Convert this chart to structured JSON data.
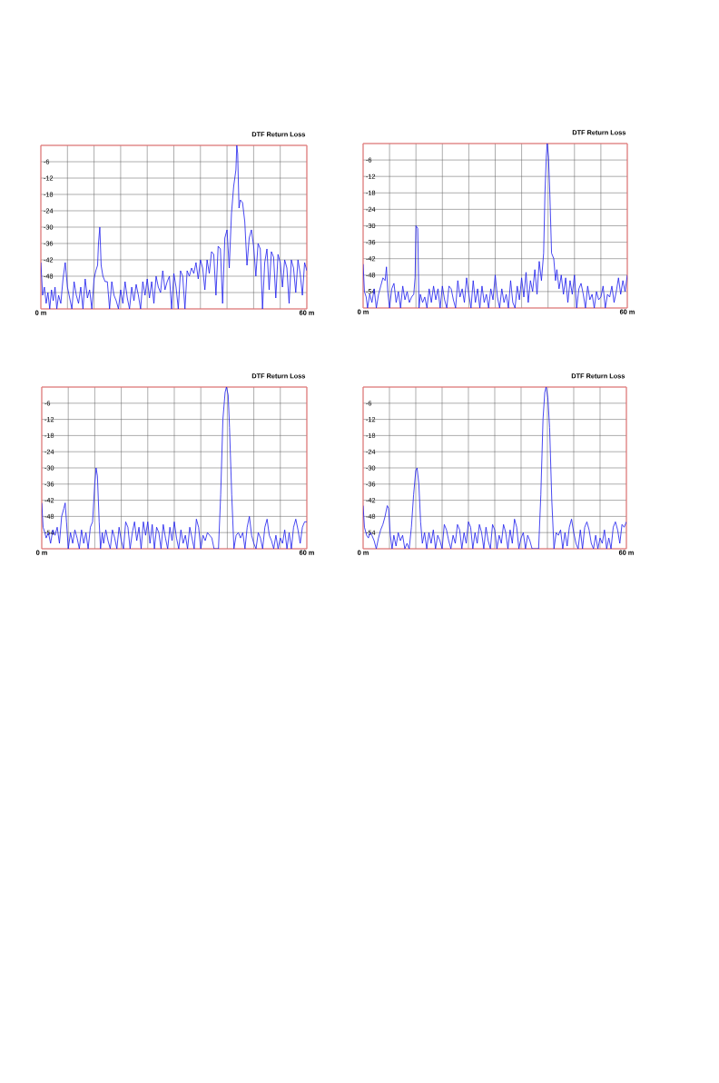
{
  "chart_data": [
    {
      "type": "line",
      "title": "DTF Return Loss",
      "xlim": [
        0,
        60
      ],
      "ylim": [
        -60,
        0
      ],
      "grid": true,
      "xticks": [
        {
          "value": 0,
          "label": "0 m"
        },
        {
          "value": 6,
          "label": null
        },
        {
          "value": 12,
          "label": null
        },
        {
          "value": 18,
          "label": null
        },
        {
          "value": 24,
          "label": null
        },
        {
          "value": 30,
          "label": null
        },
        {
          "value": 36,
          "label": null
        },
        {
          "value": 42,
          "label": null
        },
        {
          "value": 48,
          "label": null
        },
        {
          "value": 54,
          "label": null
        },
        {
          "value": 60,
          "label": "60 m"
        }
      ],
      "yticks": [
        {
          "value": -60,
          "label": null
        },
        {
          "value": -54,
          "label": null
        },
        -48,
        -42,
        -36,
        -30,
        -24,
        -18,
        -12,
        -6,
        {
          "value": 0,
          "label": null
        }
      ],
      "series": [
        {
          "color": "#1a1aee",
          "x": [
            0,
            0.4,
            0.8,
            1.2,
            1.6,
            2,
            2.4,
            2.8,
            3.2,
            3.6,
            4,
            4.5,
            5,
            5.5,
            6,
            6.5,
            7,
            7.5,
            8,
            8.5,
            9,
            9.5,
            10,
            10.5,
            11,
            11.5,
            12,
            12.4,
            12.8,
            13,
            13.3,
            13.6,
            14,
            14.5,
            15,
            15.5,
            16,
            16.5,
            17,
            17.5,
            18,
            18.5,
            19,
            19.5,
            20,
            20.5,
            21,
            21.5,
            22,
            22.5,
            23,
            23.5,
            24,
            24.5,
            25,
            25.5,
            26,
            26.5,
            27,
            27.5,
            28,
            28.5,
            29,
            29.5,
            30,
            30.5,
            31,
            31.5,
            32,
            32.5,
            33,
            33.5,
            34,
            34.5,
            35,
            35.5,
            36,
            36.5,
            37,
            37.5,
            38,
            38.5,
            39,
            39.5,
            40,
            40.5,
            41,
            41.5,
            42,
            42.5,
            43,
            43.5,
            44,
            44.2,
            44.4,
            44.7,
            45,
            45.5,
            46,
            46.5,
            47,
            47.5,
            48,
            48.5,
            49,
            49.5,
            50,
            50.5,
            51,
            51.5,
            52,
            52.5,
            53,
            53.5,
            54,
            54.5,
            55,
            55.5,
            56,
            56.5,
            57,
            57.5,
            58,
            58.5,
            59,
            59.5,
            60
          ],
          "values": [
            -43,
            -55,
            -52,
            -58,
            -54,
            -60,
            -53,
            -57,
            -52,
            -60,
            -55,
            -58,
            -49,
            -43,
            -52,
            -56,
            -60,
            -50,
            -55,
            -58,
            -52,
            -60,
            -49,
            -56,
            -53,
            -60,
            -49,
            -46,
            -44,
            -36,
            -30,
            -44,
            -48,
            -50,
            -50,
            -60,
            -50,
            -55,
            -57,
            -60,
            -53,
            -58,
            -50,
            -56,
            -60,
            -52,
            -57,
            -51,
            -55,
            -60,
            -50,
            -55,
            -49,
            -56,
            -50,
            -58,
            -48,
            -52,
            -54,
            -46,
            -53,
            -50,
            -48,
            -60,
            -47,
            -52,
            -60,
            -46,
            -48,
            -60,
            -46,
            -48,
            -45,
            -47,
            -43,
            -49,
            -42,
            -45,
            -53,
            -42,
            -47,
            -39,
            -40,
            -55,
            -37,
            -38,
            -58,
            -34,
            -31,
            -45,
            -25,
            -15,
            -9,
            0,
            -3,
            -23,
            -20,
            -21,
            -28,
            -44,
            -34,
            -31,
            -37,
            -48,
            -36,
            -38,
            -60,
            -43,
            -38,
            -53,
            -39,
            -41,
            -56,
            -40,
            -43,
            -52,
            -42,
            -45,
            -58,
            -42,
            -45,
            -54,
            -42,
            -47,
            -55,
            -43,
            -46
          ]
        }
      ]
    },
    {
      "type": "line",
      "title": "DTF Return Loss",
      "xlim": [
        0,
        60
      ],
      "ylim": [
        -60,
        0
      ],
      "grid": true,
      "xticks": [
        {
          "value": 0,
          "label": "0 m"
        },
        {
          "value": 6,
          "label": null
        },
        {
          "value": 12,
          "label": null
        },
        {
          "value": 18,
          "label": null
        },
        {
          "value": 24,
          "label": null
        },
        {
          "value": 30,
          "label": null
        },
        {
          "value": 36,
          "label": null
        },
        {
          "value": 42,
          "label": null
        },
        {
          "value": 48,
          "label": null
        },
        {
          "value": 54,
          "label": null
        },
        {
          "value": 60,
          "label": "60 m"
        }
      ],
      "yticks": [
        {
          "value": -60,
          "label": null
        },
        -54,
        -48,
        -42,
        -36,
        -30,
        -24,
        -18,
        -12,
        -6,
        {
          "value": 0,
          "label": null
        }
      ],
      "series": [
        {
          "color": "#1a1aee",
          "x": [
            0,
            0.3,
            0.7,
            1,
            1.5,
            2,
            2.5,
            3,
            3.5,
            4,
            4.5,
            5,
            5.3,
            5.6,
            6,
            6.5,
            7,
            7.5,
            8,
            8.5,
            9,
            9.5,
            10,
            10.5,
            11,
            11.5,
            11.8,
            12,
            12.4,
            12.7,
            13,
            13.5,
            14,
            14.5,
            15,
            15.5,
            16,
            16.5,
            17,
            17.5,
            18,
            18.5,
            19,
            19.5,
            20,
            20.5,
            21,
            21.5,
            22,
            22.5,
            23,
            23.5,
            24,
            24.5,
            25,
            25.5,
            26,
            26.5,
            27,
            27.5,
            28,
            28.5,
            29,
            29.5,
            30,
            30.5,
            31,
            31.5,
            32,
            32.5,
            33,
            33.5,
            34,
            34.5,
            35,
            35.5,
            36,
            36.5,
            37,
            37.5,
            38,
            38.5,
            39,
            39.5,
            40,
            40.5,
            41,
            41.3,
            41.6,
            41.8,
            42.1,
            42.4,
            42.8,
            43.3,
            43.7,
            44,
            44.5,
            45,
            45.5,
            46,
            46.5,
            47,
            47.5,
            48,
            48.5,
            49,
            49.5,
            50,
            50.5,
            51,
            51.5,
            52,
            52.5,
            53,
            53.5,
            54,
            54.5,
            55,
            55.5,
            56,
            56.5,
            57,
            57.5,
            58,
            58.5,
            59,
            59.5,
            60
          ],
          "values": [
            -44,
            -54,
            -56,
            -60,
            -55,
            -58,
            -53,
            -60,
            -55,
            -52,
            -49,
            -50,
            -45,
            -54,
            -60,
            -53,
            -51,
            -58,
            -54,
            -60,
            -52,
            -57,
            -54,
            -58,
            -56,
            -55,
            -49,
            -30,
            -31,
            -60,
            -55,
            -58,
            -56,
            -60,
            -53,
            -58,
            -52,
            -57,
            -53,
            -60,
            -52,
            -57,
            -60,
            -52,
            -53,
            -57,
            -60,
            -50,
            -56,
            -53,
            -58,
            -49,
            -55,
            -60,
            -50,
            -58,
            -53,
            -60,
            -52,
            -58,
            -55,
            -60,
            -53,
            -57,
            -48,
            -56,
            -60,
            -53,
            -58,
            -55,
            -60,
            -50,
            -58,
            -60,
            -52,
            -57,
            -49,
            -56,
            -47,
            -58,
            -50,
            -54,
            -46,
            -55,
            -43,
            -50,
            -40,
            -18,
            -5,
            0,
            -5,
            -18,
            -40,
            -42,
            -50,
            -46,
            -53,
            -48,
            -55,
            -49,
            -58,
            -50,
            -55,
            -48,
            -60,
            -53,
            -51,
            -55,
            -60,
            -52,
            -57,
            -55,
            -60,
            -54,
            -57,
            -56,
            -52,
            -60,
            -55,
            -56,
            -52,
            -58,
            -54,
            -49,
            -55,
            -50,
            -54,
            -48
          ]
        }
      ]
    },
    {
      "type": "line",
      "title": "DTF Return Loss",
      "xlim": [
        0,
        60
      ],
      "ylim": [
        -60,
        0
      ],
      "grid": true,
      "xticks": [
        {
          "value": 0,
          "label": "0 m"
        },
        {
          "value": 6,
          "label": null
        },
        {
          "value": 12,
          "label": null
        },
        {
          "value": 18,
          "label": null
        },
        {
          "value": 24,
          "label": null
        },
        {
          "value": 30,
          "label": null
        },
        {
          "value": 36,
          "label": null
        },
        {
          "value": 42,
          "label": null
        },
        {
          "value": 48,
          "label": null
        },
        {
          "value": 54,
          "label": null
        },
        {
          "value": 60,
          "label": "60 m"
        }
      ],
      "yticks": [
        {
          "value": -60,
          "label": null
        },
        -54,
        -48,
        -42,
        -36,
        -30,
        -24,
        -18,
        -12,
        -6,
        {
          "value": 0,
          "label": null
        }
      ],
      "series": [
        {
          "color": "#1a1aee",
          "x": [
            0,
            0.3,
            0.7,
            1,
            1.5,
            2,
            2.5,
            3,
            3.5,
            4,
            4.5,
            5,
            5.3,
            5.6,
            6,
            6.5,
            7,
            7.5,
            8,
            8.5,
            9,
            9.5,
            10,
            10.5,
            11,
            11.5,
            12,
            12.3,
            12.6,
            13,
            13.3,
            13.7,
            14,
            14.5,
            15,
            15.5,
            16,
            16.5,
            17,
            17.5,
            18,
            18.5,
            19,
            19.5,
            20,
            20.5,
            21,
            21.5,
            22,
            22.5,
            23,
            23.5,
            24,
            24.5,
            25,
            25.5,
            26,
            26.5,
            27,
            27.5,
            28,
            28.5,
            29,
            29.5,
            30,
            30.5,
            31,
            31.5,
            32,
            32.5,
            33,
            33.5,
            34,
            34.5,
            35,
            35.5,
            36,
            36.5,
            37,
            37.5,
            38,
            38.5,
            39,
            40,
            40.5,
            41,
            41.5,
            41.8,
            42.2,
            42.5,
            43,
            43.5,
            44,
            44.5,
            45,
            45.5,
            46,
            46.5,
            47,
            47.5,
            48,
            48.5,
            49,
            49.5,
            50,
            50.5,
            51,
            51.5,
            52,
            52.5,
            53,
            53.5,
            54,
            54.5,
            55,
            55.5,
            56,
            56.5,
            57,
            57.5,
            58,
            58.5,
            59,
            59.5,
            60
          ],
          "values": [
            -43,
            -52,
            -54,
            -56,
            -54,
            -58,
            -53,
            -55,
            -52,
            -58,
            -48,
            -45,
            -43,
            -50,
            -60,
            -54,
            -58,
            -53,
            -56,
            -60,
            -53,
            -58,
            -54,
            -60,
            -52,
            -50,
            -36,
            -30,
            -33,
            -50,
            -60,
            -54,
            -58,
            -53,
            -57,
            -60,
            -53,
            -56,
            -60,
            -52,
            -57,
            -60,
            -50,
            -52,
            -60,
            -54,
            -50,
            -57,
            -52,
            -60,
            -50,
            -55,
            -50,
            -58,
            -51,
            -60,
            -52,
            -54,
            -60,
            -51,
            -56,
            -60,
            -52,
            -57,
            -50,
            -56,
            -60,
            -53,
            -58,
            -55,
            -60,
            -52,
            -56,
            -60,
            -49,
            -52,
            -60,
            -55,
            -57,
            -54,
            -55,
            -56,
            -60,
            -60,
            -40,
            -12,
            -2,
            0,
            -3,
            -15,
            -40,
            -60,
            -55,
            -54,
            -56,
            -54,
            -60,
            -52,
            -48,
            -55,
            -58,
            -60,
            -54,
            -56,
            -60,
            -52,
            -49,
            -55,
            -57,
            -60,
            -55,
            -60,
            -56,
            -58,
            -53,
            -60,
            -54,
            -60,
            -52,
            -49,
            -53,
            -58,
            -52,
            -50,
            -50
          ]
        }
      ]
    },
    {
      "type": "line",
      "title": "DTF Return Loss",
      "xlim": [
        0,
        60
      ],
      "ylim": [
        -60,
        0
      ],
      "grid": true,
      "xticks": [
        {
          "value": 0,
          "label": "0 m"
        },
        {
          "value": 6,
          "label": null
        },
        {
          "value": 12,
          "label": null
        },
        {
          "value": 18,
          "label": null
        },
        {
          "value": 24,
          "label": null
        },
        {
          "value": 30,
          "label": null
        },
        {
          "value": 36,
          "label": null
        },
        {
          "value": 42,
          "label": null
        },
        {
          "value": 48,
          "label": null
        },
        {
          "value": 54,
          "label": null
        },
        {
          "value": 60,
          "label": "60 m"
        }
      ],
      "yticks": [
        {
          "value": -60,
          "label": null
        },
        -54,
        -48,
        -42,
        -36,
        -30,
        -24,
        -18,
        -12,
        -6,
        {
          "value": 0,
          "label": null
        }
      ],
      "series": [
        {
          "color": "#1a1aee",
          "x": [
            0,
            0.3,
            0.8,
            1.2,
            1.6,
            2,
            2.5,
            3,
            3.5,
            4,
            4.5,
            5,
            5.5,
            5.8,
            6.2,
            6.6,
            7,
            7.5,
            8,
            8.5,
            9,
            9.5,
            10,
            10.5,
            11,
            11.5,
            12,
            12.3,
            12.7,
            13.1,
            13.5,
            14,
            14.5,
            15,
            15.5,
            16,
            16.5,
            17,
            17.5,
            18,
            18.5,
            19,
            19.5,
            20,
            20.5,
            21,
            21.5,
            22,
            22.5,
            23,
            23.5,
            24,
            24.5,
            25,
            25.5,
            26,
            26.5,
            27,
            27.5,
            28,
            28.5,
            29,
            29.5,
            30,
            30.5,
            31,
            31.5,
            32,
            32.5,
            33,
            33.5,
            34,
            34.5,
            35,
            35.5,
            36,
            36.5,
            37,
            37.5,
            38,
            38.5,
            39,
            40,
            40.5,
            41,
            41.4,
            41.7,
            42.1,
            42.5,
            43,
            43.5,
            44,
            44.5,
            45,
            45.5,
            46,
            46.5,
            47,
            47.5,
            48,
            48.5,
            49,
            49.5,
            50,
            50.5,
            51,
            51.5,
            52,
            52.5,
            53,
            53.5,
            54,
            54.5,
            55,
            55.5,
            56,
            56.5,
            57,
            57.5,
            58,
            58.5,
            59,
            59.5,
            60
          ],
          "values": [
            -44,
            -52,
            -55,
            -56,
            -54,
            -55,
            -57,
            -60,
            -56,
            -53,
            -51,
            -48,
            -44,
            -45,
            -55,
            -60,
            -55,
            -59,
            -54,
            -57,
            -55,
            -60,
            -58,
            -60,
            -52,
            -40,
            -31,
            -30,
            -36,
            -50,
            -58,
            -54,
            -60,
            -54,
            -58,
            -53,
            -60,
            -55,
            -57,
            -60,
            -51,
            -53,
            -57,
            -60,
            -55,
            -58,
            -51,
            -53,
            -60,
            -54,
            -58,
            -50,
            -52,
            -60,
            -54,
            -58,
            -51,
            -54,
            -60,
            -52,
            -57,
            -60,
            -51,
            -53,
            -60,
            -55,
            -58,
            -51,
            -54,
            -60,
            -53,
            -58,
            -49,
            -52,
            -60,
            -56,
            -54,
            -60,
            -55,
            -57,
            -60,
            -60,
            -60,
            -40,
            -12,
            -2,
            0,
            -4,
            -15,
            -42,
            -60,
            -54,
            -55,
            -53,
            -60,
            -54,
            -59,
            -52,
            -49,
            -54,
            -58,
            -60,
            -53,
            -60,
            -52,
            -50,
            -53,
            -58,
            -60,
            -55,
            -60,
            -56,
            -58,
            -53,
            -60,
            -56,
            -60,
            -52,
            -50,
            -53,
            -58,
            -51,
            -52,
            -50
          ]
        }
      ]
    }
  ]
}
